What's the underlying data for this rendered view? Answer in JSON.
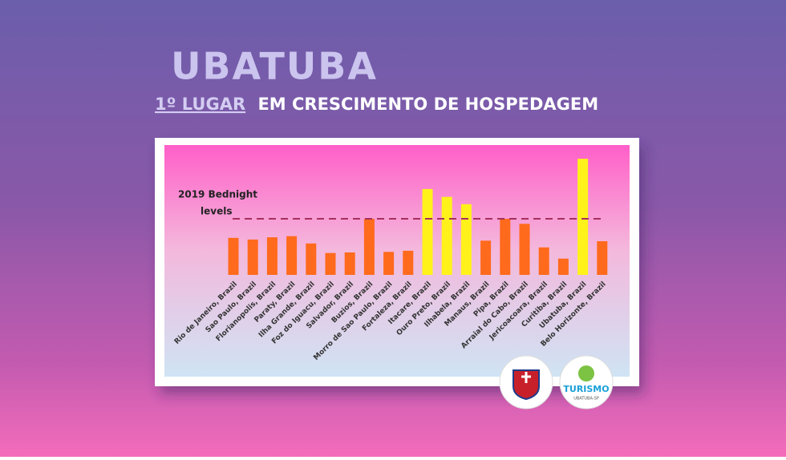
{
  "header": {
    "title": "UBATUBA",
    "subtitle_highlight": "1º LUGAR",
    "subtitle": "EM CRESCIMENTO DE HOSPEDAGEM"
  },
  "chart_data": {
    "type": "bar",
    "annotation": [
      "2019 Bednight",
      "levels"
    ],
    "reference_line": 100,
    "categories": [
      "Rio de Janeiro, Brazil",
      "Sao Paulo, Brazil",
      "Florianopolis, Brazil",
      "Paraty, Brazil",
      "Ilha Grande, Brazil",
      "Foz do Iguacu, Brazil",
      "Salvador, Brazil",
      "Buzios, Brazil",
      "Morro de Sao Paulo, Brazil",
      "Fortaleza, Brazil",
      "Itacare, Brazil",
      "Ouro Preto, Brazil",
      "Ilhabela, Brazil",
      "Manaus, Brazil",
      "Pipa, Brazil",
      "Arraial do Cabo, Brazil",
      "Jericoacoara, Brazil",
      "Curitiba, Brazil",
      "Ubatuba, Brazil",
      "Belo Horizonte, Brazil"
    ],
    "values": [
      66,
      63,
      67,
      69,
      56,
      39,
      40,
      100,
      41,
      43,
      153,
      139,
      126,
      61,
      100,
      91,
      49,
      29,
      207,
      60
    ],
    "colors": [
      "#ff6a1c",
      "#ff6a1c",
      "#ff6a1c",
      "#ff6a1c",
      "#ff6a1c",
      "#ff6a1c",
      "#ff6a1c",
      "#ff6a1c",
      "#ff6a1c",
      "#ff6a1c",
      "#fff21a",
      "#fff21a",
      "#fff21a",
      "#ff6a1c",
      "#ff6a1c",
      "#ff6a1c",
      "#ff6a1c",
      "#ff6a1c",
      "#fff21a",
      "#ff6a1c"
    ],
    "ylim": [
      0,
      215
    ]
  },
  "logos": {
    "tourism": "TURISMO",
    "tourism_sub": "UBATUBA-SP"
  }
}
